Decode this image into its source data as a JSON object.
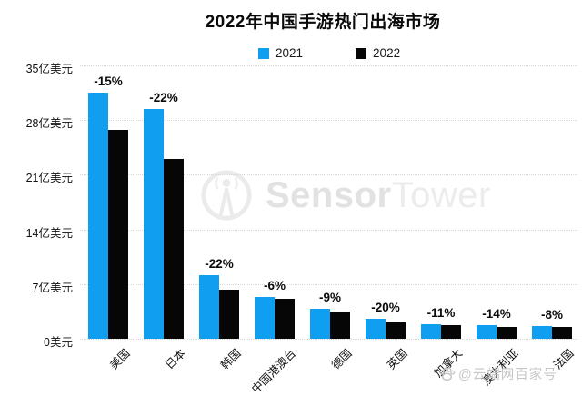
{
  "title": "2022年中国手游热门出海市场",
  "legend": [
    {
      "label": "2021",
      "color": "#109ff0"
    },
    {
      "label": "2022",
      "color": "#060606"
    }
  ],
  "y_axis": {
    "tick_labels": [
      "35亿美元",
      "28亿美元",
      "21亿美元",
      "14亿美元",
      "7亿美元",
      "0美元"
    ]
  },
  "chart_data": {
    "type": "bar",
    "title": "2022年中国手游热门出海市场",
    "categories": [
      "美国",
      "日本",
      "韩国",
      "中国港澳台",
      "德国",
      "英国",
      "加拿大",
      "澳大利亚",
      "法国"
    ],
    "series": [
      {
        "name": "2021",
        "color": "#109ff0",
        "values": [
          31.5,
          29.4,
          8.1,
          5.4,
          3.8,
          2.6,
          1.9,
          1.8,
          1.65
        ]
      },
      {
        "name": "2022",
        "color": "#060606",
        "values": [
          26.8,
          23.0,
          6.3,
          5.1,
          3.45,
          2.1,
          1.7,
          1.55,
          1.5
        ]
      }
    ],
    "change_labels": [
      "-15%",
      "-22%",
      "-22%",
      "-6%",
      "-9%",
      "-20%",
      "-11%",
      "-14%",
      "-8%"
    ],
    "xlabel": "",
    "ylabel": "亿美元",
    "ylim": [
      0,
      35
    ],
    "grid": "horizontal-dotted",
    "legend_position": "top-center"
  },
  "watermarks": {
    "sensor_tower": {
      "text_bold": "Sensor",
      "text_light": "Tower"
    },
    "baijiahao": {
      "text": "@云端网百家号",
      "icon": "paw-icon"
    }
  }
}
